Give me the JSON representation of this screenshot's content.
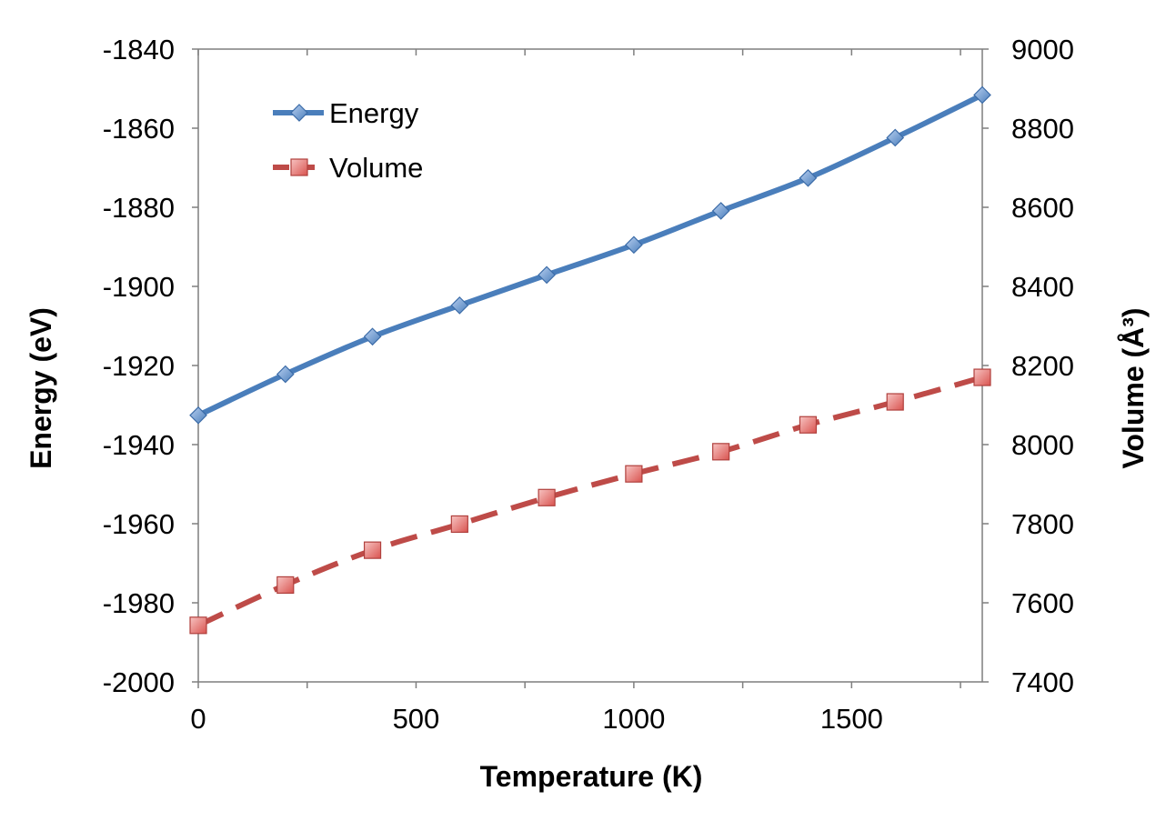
{
  "chart_data": {
    "type": "line",
    "title": "",
    "xlabel": "Temperature (K)",
    "ylabel": "Energy (eV)",
    "y2label": "Volume (Å³)",
    "xlim": [
      0,
      1800
    ],
    "ylim": [
      -2000,
      -1840
    ],
    "y2lim": [
      7400,
      9000
    ],
    "xticks": [
      0,
      500,
      1000,
      1500
    ],
    "yticks": [
      -2000,
      -1980,
      -1960,
      -1940,
      -1920,
      -1900,
      -1880,
      -1860,
      -1840
    ],
    "y2ticks": [
      7400,
      7600,
      7800,
      8000,
      8200,
      8400,
      8600,
      8800,
      9000
    ],
    "x": [
      0,
      200,
      400,
      600,
      800,
      1000,
      1200,
      1400,
      1600,
      1800
    ],
    "series": [
      {
        "name": "Energy",
        "axis": "left",
        "color": "#4a7ebb",
        "marker": "diamond",
        "line_style": "solid",
        "values": [
          -1932.6,
          -1922.2,
          -1912.7,
          -1904.8,
          -1897.1,
          -1889.5,
          -1880.9,
          -1872.6,
          -1862.4,
          -1851.6
        ]
      },
      {
        "name": "Volume",
        "axis": "right",
        "color": "#be4b48",
        "marker": "square",
        "line_style": "dashed",
        "values": [
          7543,
          7645,
          7733,
          7799,
          7866,
          7926,
          7982,
          8050,
          8108,
          8170
        ]
      }
    ],
    "grid": false,
    "legend_position": "top-left"
  }
}
